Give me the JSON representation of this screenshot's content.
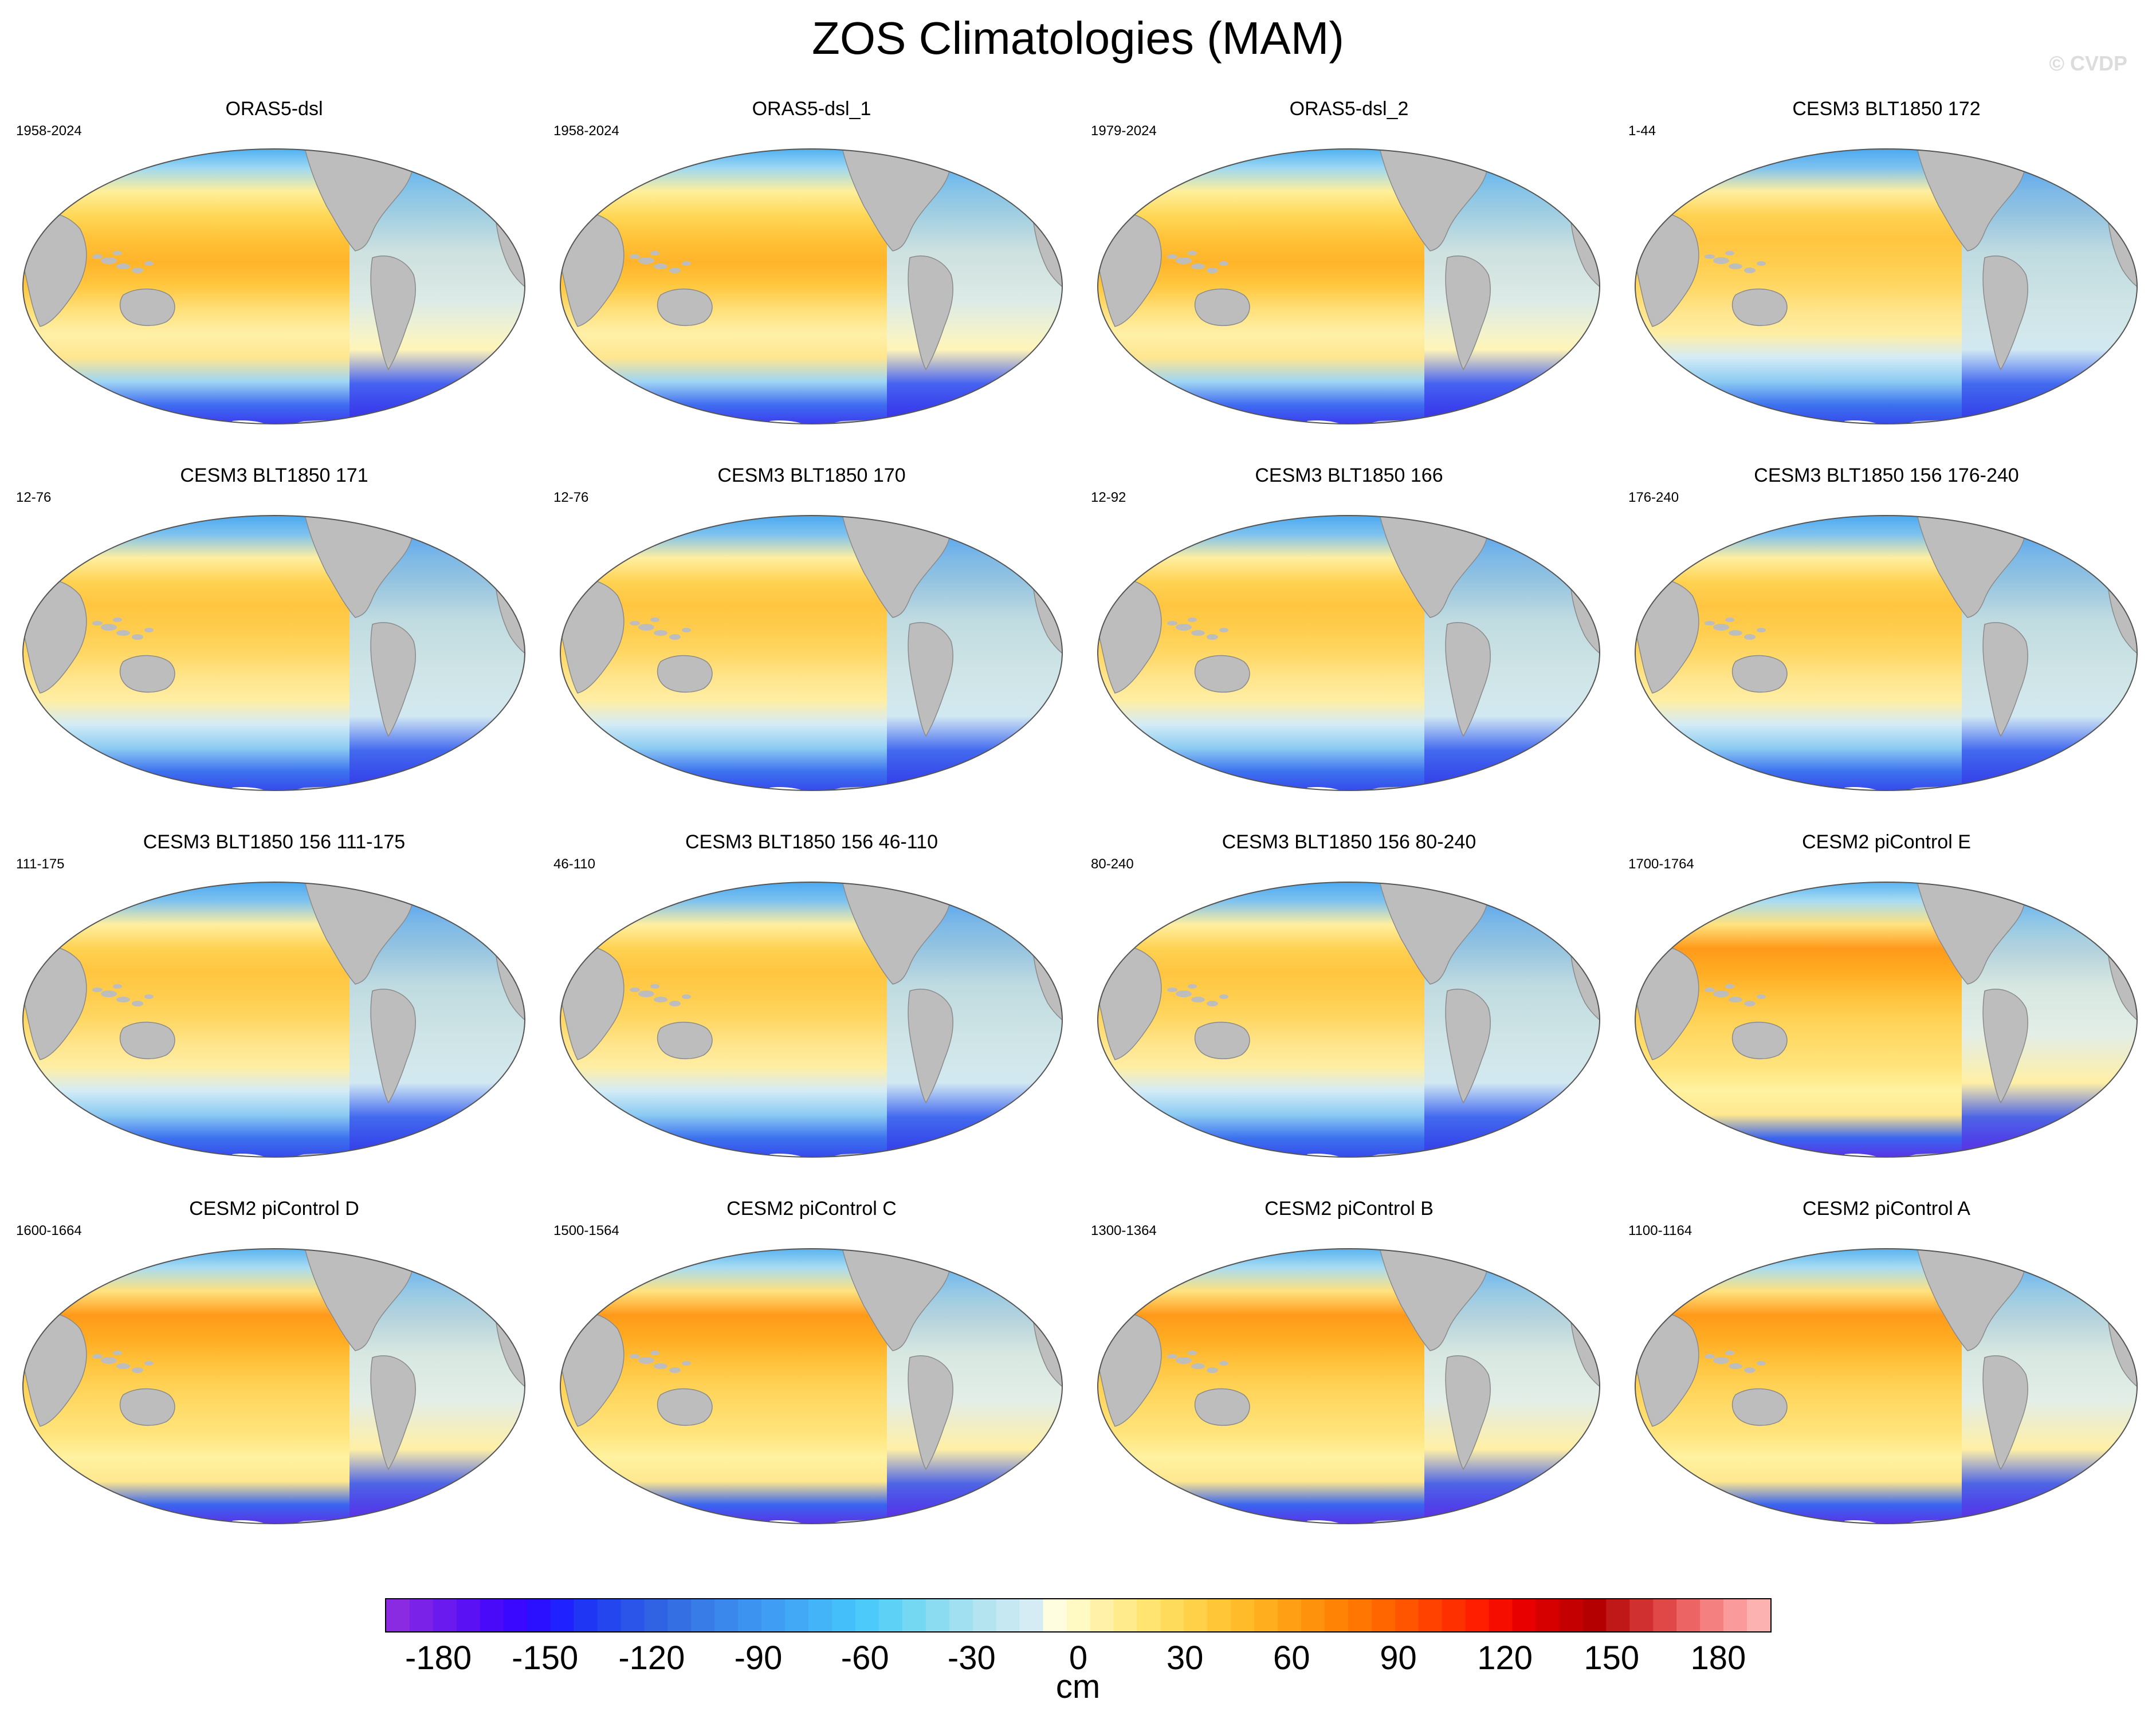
{
  "title": "ZOS Climatologies (MAM)",
  "watermark": "© CVDP",
  "colors": {
    "land": "#bdbdbd",
    "antarctica": "#ffffff",
    "outline": "#555555"
  },
  "panels": [
    {
      "title": "ORAS5-dsl",
      "years": "1958-2024",
      "style": "obs"
    },
    {
      "title": "ORAS5-dsl_1",
      "years": "1958-2024",
      "style": "obs"
    },
    {
      "title": "ORAS5-dsl_2",
      "years": "1979-2024",
      "style": "obs"
    },
    {
      "title": "CESM3 BLT1850 172",
      "years": "1-44",
      "style": "cesm3"
    },
    {
      "title": "CESM3 BLT1850 171",
      "years": "12-76",
      "style": "cesm3"
    },
    {
      "title": "CESM3 BLT1850 170",
      "years": "12-76",
      "style": "cesm3"
    },
    {
      "title": "CESM3 BLT1850 166",
      "years": "12-92",
      "style": "cesm3"
    },
    {
      "title": "CESM3 BLT1850 156 176-240",
      "years": "176-240",
      "style": "cesm3"
    },
    {
      "title": "CESM3 BLT1850 156 111-175",
      "years": "111-175",
      "style": "cesm3"
    },
    {
      "title": "CESM3 BLT1850 156 46-110",
      "years": "46-110",
      "style": "cesm3"
    },
    {
      "title": "CESM3 BLT1850 156 80-240",
      "years": "80-240",
      "style": "cesm3"
    },
    {
      "title": "CESM2 piControl E",
      "years": "1700-1764",
      "style": "cesm2"
    },
    {
      "title": "CESM2 piControl D",
      "years": "1600-1664",
      "style": "cesm2"
    },
    {
      "title": "CESM2 piControl C",
      "years": "1500-1564",
      "style": "cesm2"
    },
    {
      "title": "CESM2 piControl B",
      "years": "1300-1364",
      "style": "cesm2"
    },
    {
      "title": "CESM2 piControl A",
      "years": "1100-1164",
      "style": "cesm2"
    }
  ],
  "colorbar": {
    "unit": "cm",
    "min": -195,
    "max": 195,
    "tick_labels": [
      "-180",
      "-150",
      "-120",
      "-90",
      "-60",
      "-30",
      "0",
      "30",
      "60",
      "90",
      "120",
      "150",
      "180"
    ],
    "colors": [
      "#8a2be2",
      "#7a22e8",
      "#6a1aee",
      "#5a12f4",
      "#4a0afa",
      "#3a08ff",
      "#2a10ff",
      "#1f22ff",
      "#1f36f5",
      "#2446ee",
      "#2a55e8",
      "#2f63e4",
      "#3470e4",
      "#387ce8",
      "#3b88ec",
      "#3d93f0",
      "#3f9ef3",
      "#41a9f6",
      "#43b4f8",
      "#45bffa",
      "#4ccbfa",
      "#5ed2f6",
      "#74d8f3",
      "#8bdcf0",
      "#a0e0f0",
      "#b4e4f0",
      "#c6e8f2",
      "#d6ecf4",
      "#fffde0",
      "#fff9c4",
      "#fff2a8",
      "#ffeb8c",
      "#ffe472",
      "#ffdb5c",
      "#ffd148",
      "#ffc638",
      "#ffbb2a",
      "#ffae1e",
      "#ffa014",
      "#ff920c",
      "#ff8406",
      "#ff7602",
      "#ff6600",
      "#ff5400",
      "#ff4200",
      "#ff3000",
      "#ff1e00",
      "#f70c00",
      "#e80000",
      "#d60000",
      "#c40000",
      "#b40000",
      "#c01818",
      "#d03030",
      "#e04848",
      "#ec6464",
      "#f58080",
      "#fa9a9a",
      "#fdb2b2"
    ]
  }
}
